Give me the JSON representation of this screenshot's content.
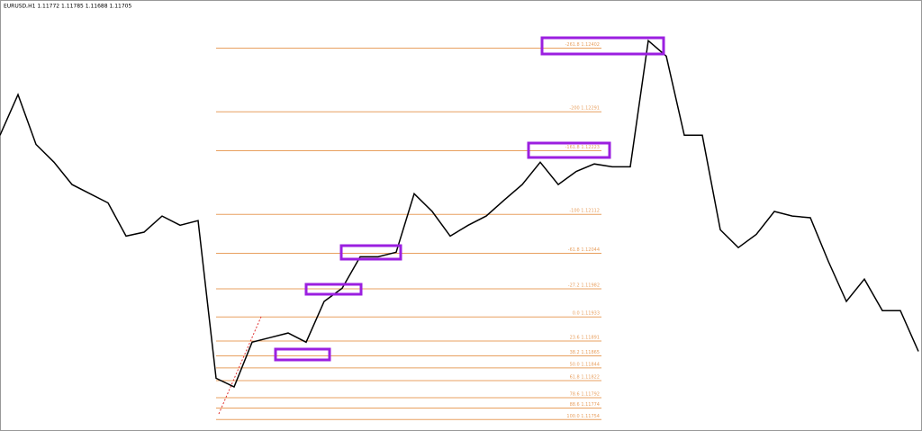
{
  "chart_data": {
    "type": "line",
    "title": "EURUSD,H1  1.11772 1.11785 1.11688 1.11705",
    "color": "#000000",
    "fib_color": "#e8a060",
    "ylim": [
      1.11734,
      1.12486
    ],
    "values": [
      1.1225,
      1.12321,
      1.12234,
      1.12203,
      1.12164,
      1.12148,
      1.12132,
      1.12074,
      1.12081,
      1.12109,
      1.12093,
      1.12101,
      1.11826,
      1.11811,
      1.11889,
      1.11897,
      1.11905,
      1.11889,
      1.1196,
      1.11983,
      1.12038,
      1.12038,
      1.12046,
      1.12148,
      1.12117,
      1.12074,
      1.12093,
      1.12109,
      1.12137,
      1.12164,
      1.12203,
      1.12164,
      1.12187,
      1.122,
      1.12195,
      1.12195,
      1.12415,
      1.12388,
      1.1225,
      1.1225,
      1.12085,
      1.12054,
      1.12077,
      1.12117,
      1.12109,
      1.12106,
      1.1203,
      1.1196,
      1.11999,
      1.11944,
      1.11944,
      1.11873
    ],
    "fib_levels": [
      {
        "value": 1.12402,
        "label": "-261.8 1.12402"
      },
      {
        "value": 1.12291,
        "label": "-200 1.12291"
      },
      {
        "value": 1.12223,
        "label": "-161.8 1.12223"
      },
      {
        "value": 1.12112,
        "label": "-100 1.12112"
      },
      {
        "value": 1.12044,
        "label": "-61.8 1.12044"
      },
      {
        "value": 1.11982,
        "label": "-27.2 1.11982"
      },
      {
        "value": 1.11933,
        "label": "0.0 1.11933"
      },
      {
        "value": 1.11891,
        "label": "23.6 1.11891"
      },
      {
        "value": 1.11865,
        "label": "38.2 1.11865"
      },
      {
        "value": 1.11844,
        "label": "50.0 1.11844"
      },
      {
        "value": 1.11822,
        "label": "61.8 1.11822"
      },
      {
        "value": 1.11792,
        "label": "78.6 1.11792"
      },
      {
        "value": 1.11774,
        "label": "88.6 1.11774"
      },
      {
        "value": 1.11754,
        "label": "100.0 1.11754"
      }
    ]
  }
}
